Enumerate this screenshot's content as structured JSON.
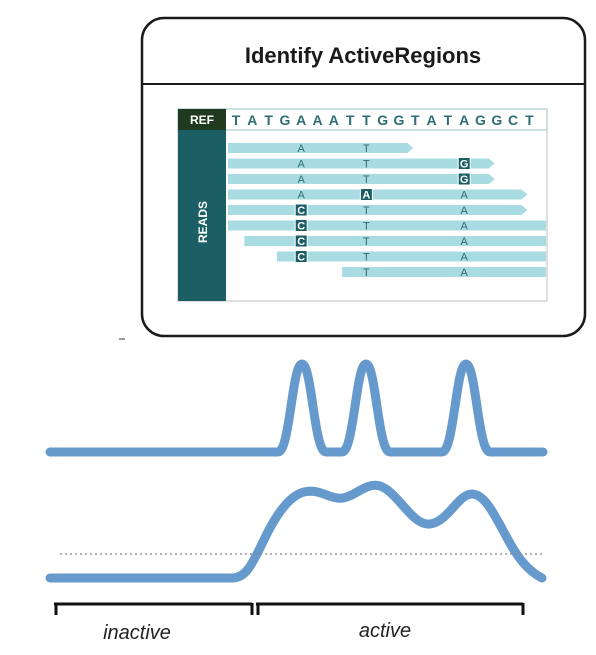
{
  "card": {
    "title": "Identify ActiveRegions",
    "ref_label": "REF",
    "reads_label": "READS",
    "ref_bases": [
      "T",
      "A",
      "T",
      "G",
      "A",
      "A",
      "A",
      "T",
      "T",
      "G",
      "G",
      "T",
      "A",
      "T",
      "A",
      "G",
      "G",
      "C",
      "T"
    ]
  },
  "reads": [
    {
      "start": 0,
      "end": 11,
      "bases": [
        {
          "col": 4,
          "base": "A",
          "hl": false
        },
        {
          "col": 8,
          "base": "T",
          "hl": false
        }
      ]
    },
    {
      "start": 0,
      "end": 16,
      "bases": [
        {
          "col": 4,
          "base": "A",
          "hl": false
        },
        {
          "col": 8,
          "base": "T",
          "hl": false
        },
        {
          "col": 14,
          "base": "G",
          "hl": true
        }
      ]
    },
    {
      "start": 0,
      "end": 16,
      "bases": [
        {
          "col": 4,
          "base": "A",
          "hl": false
        },
        {
          "col": 8,
          "base": "T",
          "hl": false
        },
        {
          "col": 14,
          "base": "G",
          "hl": true
        }
      ]
    },
    {
      "start": 0,
      "end": 18,
      "bases": [
        {
          "col": 4,
          "base": "A",
          "hl": false
        },
        {
          "col": 8,
          "base": "A",
          "hl": true
        },
        {
          "col": 14,
          "base": "A",
          "hl": false
        }
      ]
    },
    {
      "start": 0,
      "end": 18,
      "bases": [
        {
          "col": 4,
          "base": "C",
          "hl": true
        },
        {
          "col": 8,
          "base": "T",
          "hl": false
        },
        {
          "col": 14,
          "base": "A",
          "hl": false
        }
      ]
    },
    {
      "start": 0,
      "end": 20,
      "bases": [
        {
          "col": 4,
          "base": "C",
          "hl": true
        },
        {
          "col": 8,
          "base": "T",
          "hl": false
        },
        {
          "col": 14,
          "base": "A",
          "hl": false
        }
      ]
    },
    {
      "start": 1,
      "end": 20,
      "bases": [
        {
          "col": 4,
          "base": "C",
          "hl": true
        },
        {
          "col": 8,
          "base": "T",
          "hl": false
        },
        {
          "col": 14,
          "base": "A",
          "hl": false
        }
      ]
    },
    {
      "start": 3,
      "end": 20,
      "bases": [
        {
          "col": 4,
          "base": "C",
          "hl": true
        },
        {
          "col": 8,
          "base": "T",
          "hl": false
        },
        {
          "col": 14,
          "base": "A",
          "hl": false
        }
      ]
    },
    {
      "start": 7,
      "end": 20,
      "bases": [
        {
          "col": 8,
          "base": "T",
          "hl": false
        },
        {
          "col": 14,
          "base": "A",
          "hl": false
        }
      ]
    }
  ],
  "regions": {
    "inactive_label": "inactive",
    "active_label": "active"
  },
  "colors": {
    "curve": "#6699cc",
    "read_bar": "#a9dbe3",
    "dark_teal": "#1b5e63",
    "ref_label_bg": "#1f3a1f",
    "card_border": "#1a1a1a"
  }
}
